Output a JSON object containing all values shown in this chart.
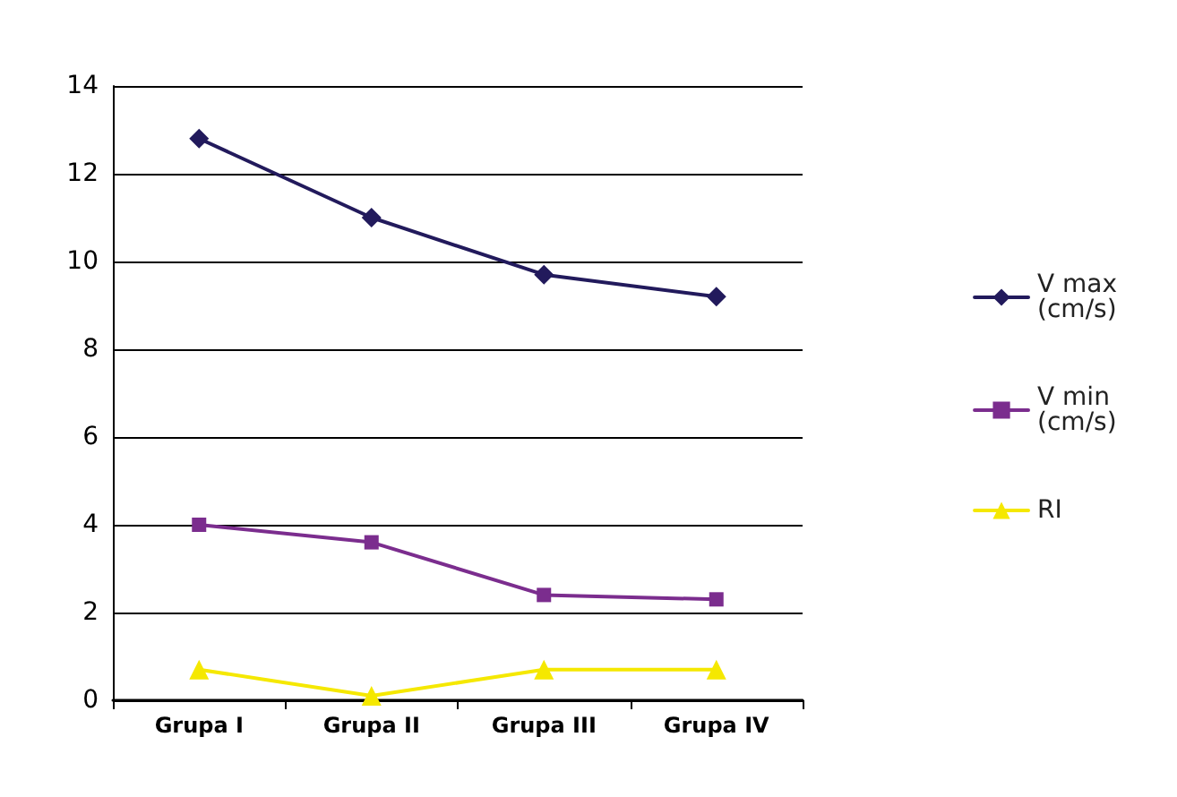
{
  "chart_data": {
    "type": "line",
    "categories": [
      "Grupa I",
      "Grupa II",
      "Grupa III",
      "Grupa IV"
    ],
    "series": [
      {
        "name": "V max (cm/s)",
        "color": "#221a5c",
        "marker": "diamond",
        "values": [
          12.8,
          11.0,
          9.7,
          9.2
        ]
      },
      {
        "name": "V min (cm/s)",
        "color": "#7b2d8e",
        "marker": "square",
        "values": [
          4.0,
          3.6,
          2.4,
          2.3
        ]
      },
      {
        "name": "RI",
        "color": "#f5e800",
        "marker": "triangle",
        "values": [
          0.7,
          0.1,
          0.7,
          0.7
        ]
      }
    ],
    "ylim": [
      0,
      14
    ],
    "yticks": [
      0,
      2,
      4,
      6,
      8,
      10,
      12,
      14
    ],
    "grid": "y",
    "legend": "right",
    "line_style": "solid"
  }
}
